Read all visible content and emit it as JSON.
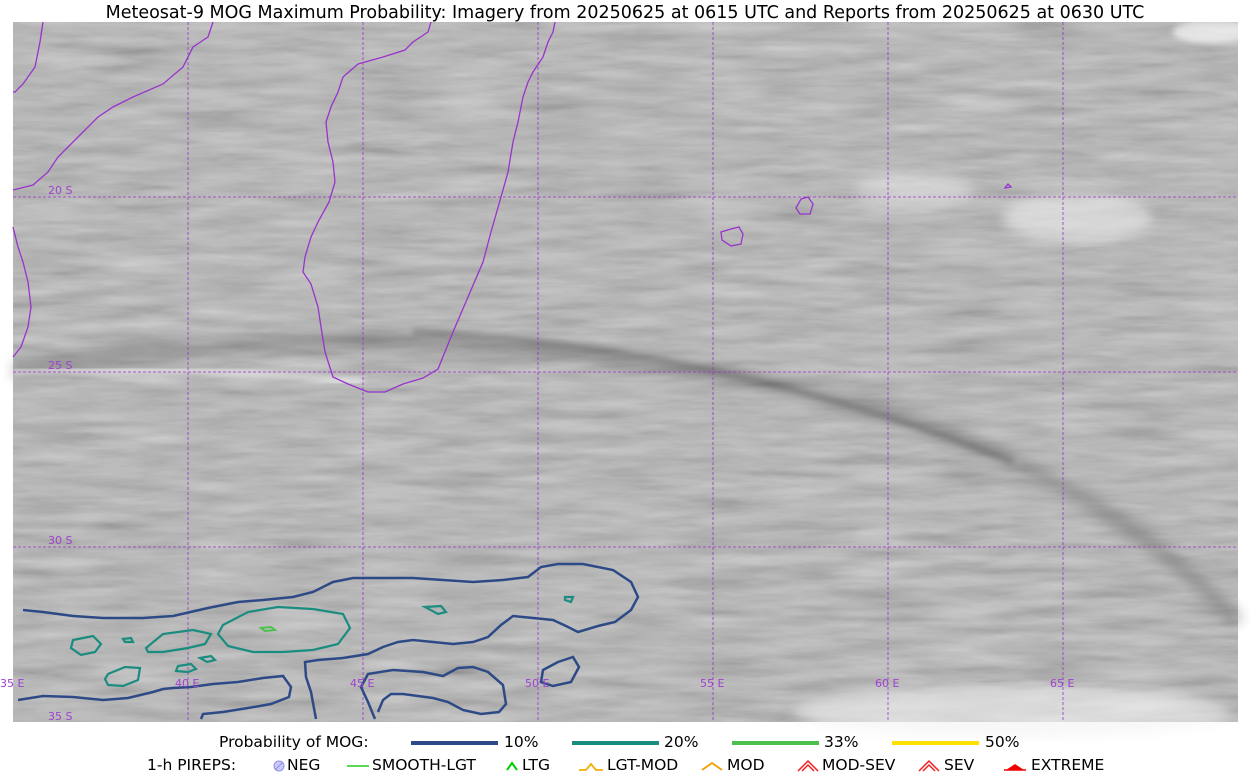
{
  "title": "Meteosat-9 MOG Maximum Probability: Imagery from 20250625 at 0615 UTC and Reports from 20250625 at 0630 UTC",
  "map": {
    "lat_labels": [
      "20 S",
      "25 S",
      "30 S",
      "35 S"
    ],
    "lon_labels": [
      "35 E",
      "40 E",
      "45 E",
      "50 E",
      "55 E",
      "60 E",
      "65 E"
    ],
    "coastline_color": "#9933cc",
    "gridline_color": "#9933cc"
  },
  "legend": {
    "probability_label": "Probability of MOG:",
    "probability_items": [
      {
        "label": "10%",
        "color": "#2e4a86"
      },
      {
        "label": "20%",
        "color": "#1a8c80"
      },
      {
        "label": "33%",
        "color": "#4cc04c"
      },
      {
        "label": "50%",
        "color": "#ffe000"
      }
    ],
    "pireps_label": "1-h PIREPS:",
    "pirep_items": [
      {
        "label": "NEG",
        "icon": "neg-circle-icon",
        "color": "#b0b0ff"
      },
      {
        "label": "SMOOTH-LGT",
        "icon": "line-icon",
        "color": "#22cc22"
      },
      {
        "label": "LTG",
        "icon": "caret-icon",
        "color": "#00cc00"
      },
      {
        "label": "LGT-MOD",
        "icon": "hat-icon",
        "color": "#f0b000"
      },
      {
        "label": "MOD",
        "icon": "caret-icon",
        "color": "#f0a000"
      },
      {
        "label": "MOD-SEV",
        "icon": "double-caret-icon",
        "color": "#ee2222"
      },
      {
        "label": "SEV",
        "icon": "double-caret-icon",
        "color": "#ee2222"
      },
      {
        "label": "EXTREME",
        "icon": "filled-triangle-icon",
        "color": "#ee0000"
      }
    ]
  }
}
